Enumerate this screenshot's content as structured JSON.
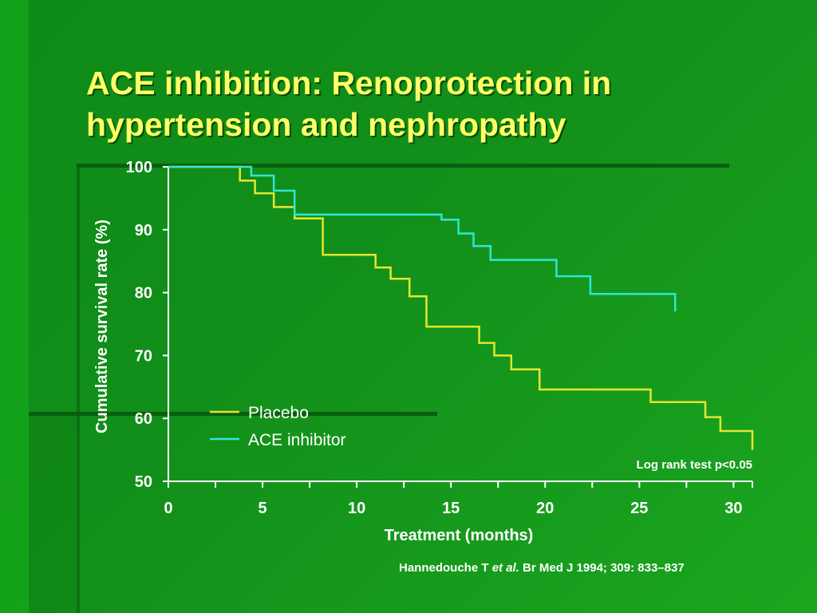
{
  "slide": {
    "title_line1": "ACE inhibition: Renoprotection in",
    "title_line2": "hypertension and nephropathy",
    "citation_author": "Hannedouche T ",
    "citation_etal": "et al.",
    "citation_rest": " Br Med J 1994; 309: 833–837",
    "colors": {
      "title": "#ffff66",
      "background": "#128e1a"
    }
  },
  "chart_data": {
    "type": "line",
    "step": true,
    "title": "",
    "xlabel": "Treatment (months)",
    "ylabel": "Cumulative survival rate (%)",
    "xlim": [
      0,
      31
    ],
    "ylim": [
      50,
      100
    ],
    "x_ticks": [
      0,
      5,
      10,
      15,
      20,
      25,
      30
    ],
    "y_ticks": [
      50,
      60,
      70,
      80,
      90,
      100
    ],
    "legend_position": "left-bottom",
    "annotation": "Log rank test p<0.05",
    "series": [
      {
        "name": "Placebo",
        "color": "#e6e62e",
        "x": [
          0,
          3.8,
          3.8,
          4.6,
          4.6,
          5.6,
          5.6,
          6.7,
          6.7,
          8.2,
          8.2,
          11,
          11,
          11.8,
          11.8,
          12.8,
          12.8,
          13.7,
          13.7,
          16.5,
          16.5,
          17.3,
          17.3,
          18.2,
          18.2,
          19.7,
          19.7,
          25.6,
          25.6,
          28.5,
          28.5,
          29.3,
          29.3,
          31,
          31
        ],
        "y": [
          100,
          100,
          97.8,
          97.8,
          95.8,
          95.8,
          93.6,
          93.6,
          91.8,
          91.8,
          86,
          86,
          84,
          84,
          82.2,
          82.2,
          79.4,
          79.4,
          74.6,
          74.6,
          72,
          72,
          70,
          70,
          67.8,
          67.8,
          64.6,
          64.6,
          62.6,
          62.6,
          60.2,
          60.2,
          58,
          58,
          55
        ]
      },
      {
        "name": "ACE inhibitor",
        "color": "#2ee6d6",
        "x": [
          0,
          4.4,
          4.4,
          5.6,
          5.6,
          6.7,
          6.7,
          14.5,
          14.5,
          15.4,
          15.4,
          16.2,
          16.2,
          17.1,
          17.1,
          20.6,
          20.6,
          22.4,
          22.4,
          26.9,
          26.9
        ],
        "y": [
          100,
          100,
          98.6,
          98.6,
          96.2,
          96.2,
          92.4,
          92.4,
          91.6,
          91.6,
          89.4,
          89.4,
          87.4,
          87.4,
          85.2,
          85.2,
          82.6,
          82.6,
          79.8,
          79.8,
          77
        ]
      }
    ]
  }
}
